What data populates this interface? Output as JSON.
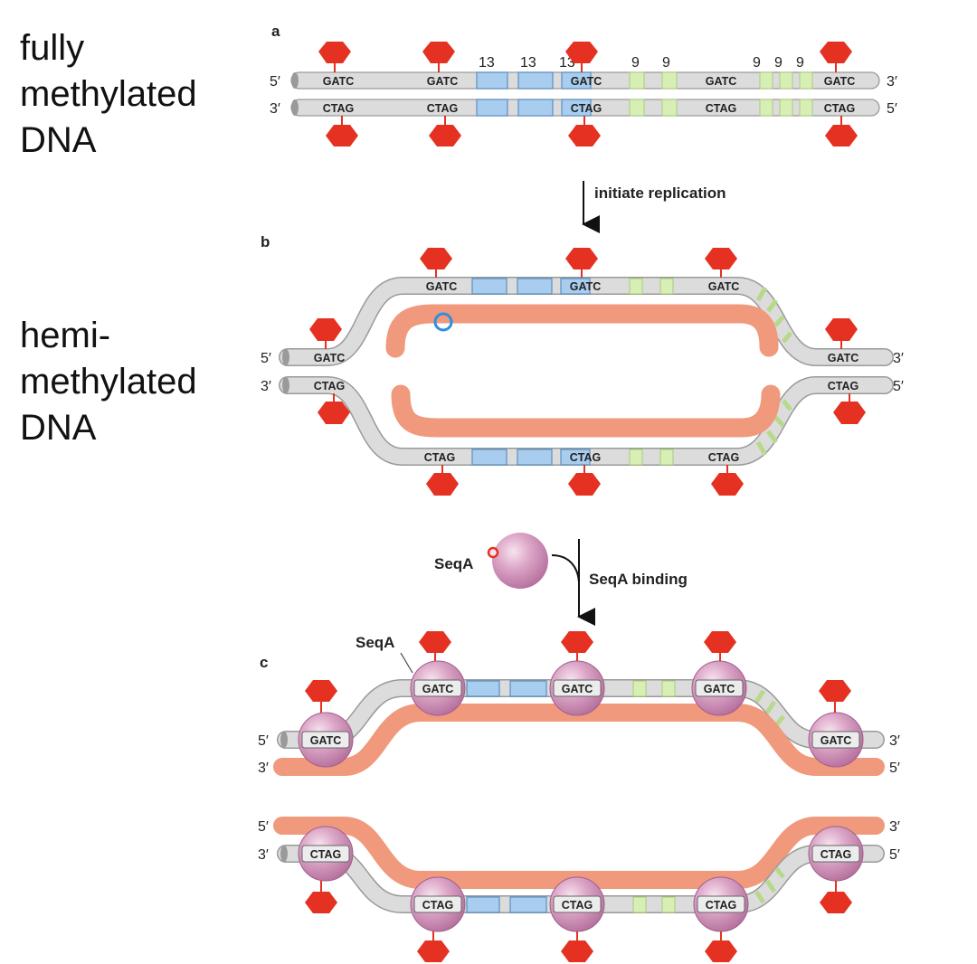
{
  "side_labels": {
    "fully_methylated": "fully\nmethylated\nDNA",
    "hemi_methylated": "hemi-\nmethylated\nDNA"
  },
  "panels": {
    "a": "a",
    "b": "b",
    "c": "c"
  },
  "ends": {
    "five_prime": "5′",
    "three_prime": "3′"
  },
  "sites": {
    "top": "GATC",
    "bottom": "CTAG"
  },
  "repeats": {
    "thirteen": "13",
    "nine": "9"
  },
  "steps": {
    "initiate": "initiate replication",
    "seqa_binding": "SeqA binding"
  },
  "seqa_label": "SeqA",
  "colors": {
    "parental_strand": "#dcdcdc",
    "new_strand": "#f0997c",
    "repeat_13": "#a9cdee",
    "repeat_9": "#d7efb4",
    "methyl_group": "#e53121",
    "seqa_protein": "#c97fb0"
  }
}
